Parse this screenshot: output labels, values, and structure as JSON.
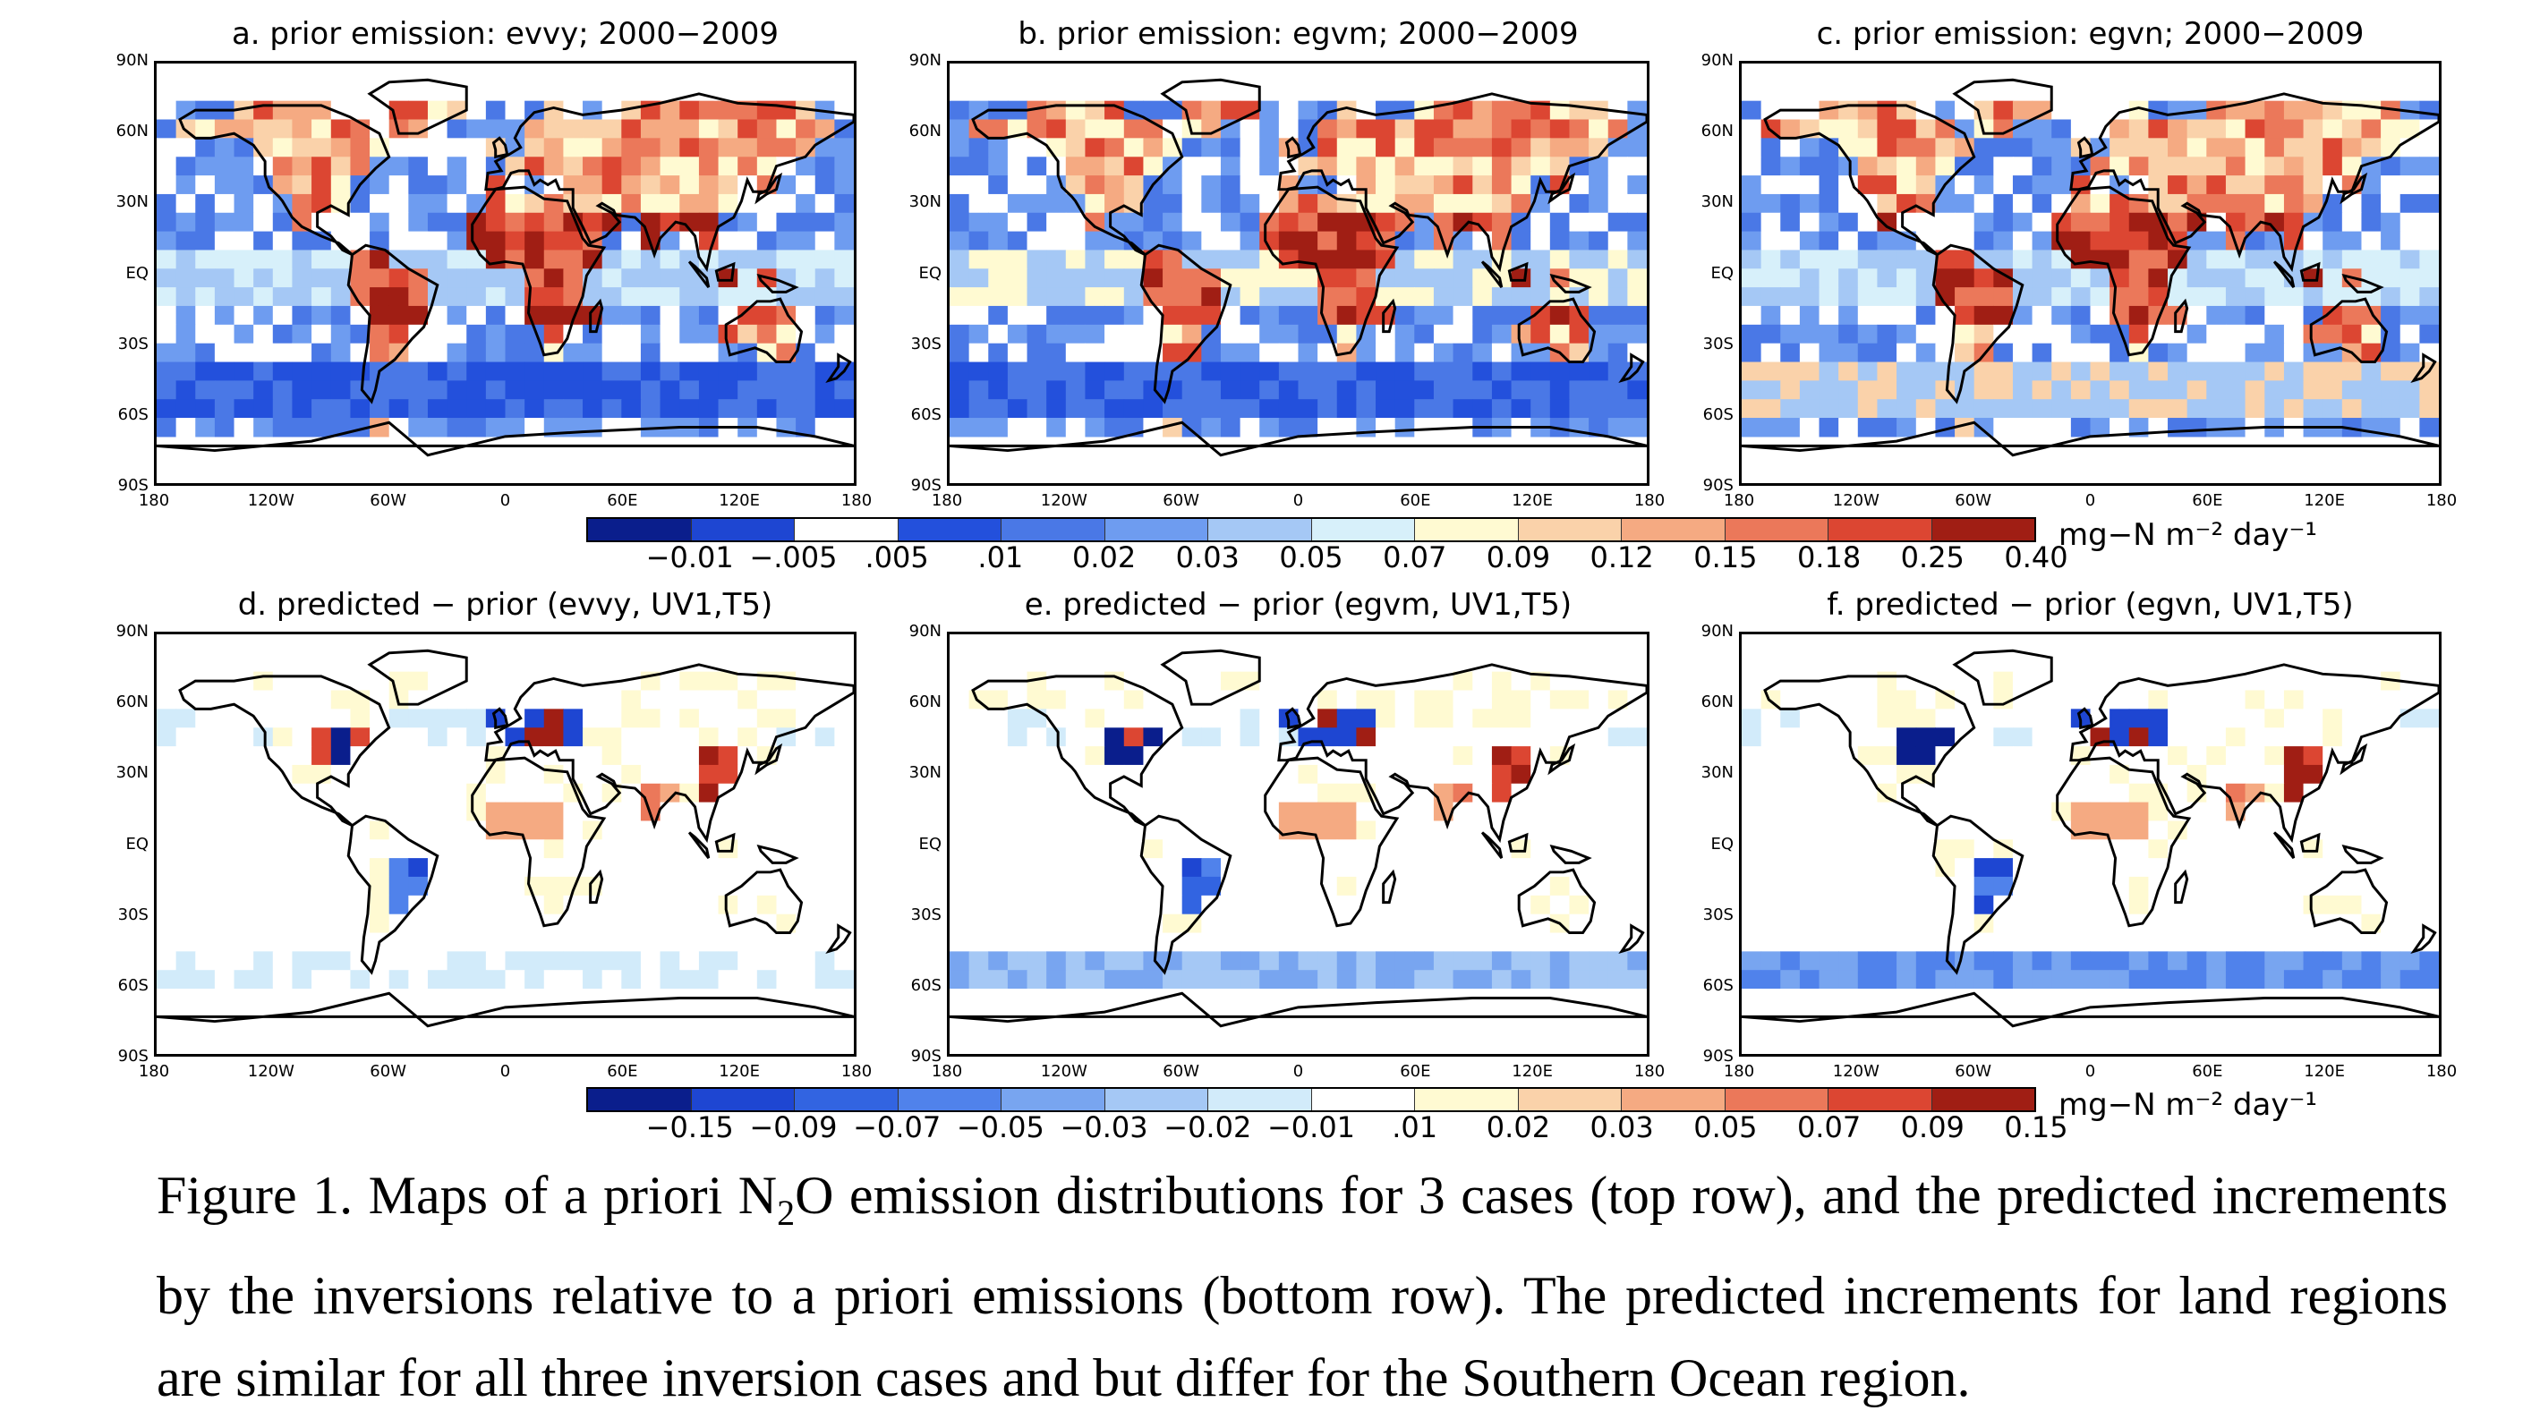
{
  "panels": [
    {
      "title": "a. prior emission: evvy; 2000−2009",
      "scheme": "prior"
    },
    {
      "title": "b. prior emission: egvm; 2000−2009",
      "scheme": "prior"
    },
    {
      "title": "c. prior emission: egvn; 2000−2009",
      "scheme": "prior"
    },
    {
      "title": "d. predicted − prior (evvy, UV1,T5)",
      "scheme": "diff"
    },
    {
      "title": "e. predicted − prior (egvm, UV1,T5)",
      "scheme": "diff"
    },
    {
      "title": "f. predicted − prior (egvn, UV1,T5)",
      "scheme": "diff"
    }
  ],
  "lat_labels": [
    "90N",
    "60N",
    "30N",
    "EQ",
    "30S",
    "60S",
    "90S"
  ],
  "lon_labels": [
    "180",
    "120W",
    "60W",
    "0",
    "60E",
    "120E",
    "180"
  ],
  "colorbar_top": {
    "labels": [
      "−0.01",
      "−.005",
      ".005",
      ".01",
      "0.02",
      "0.03",
      "0.05",
      "0.07",
      "0.09",
      "0.12",
      "0.15",
      "0.18",
      "0.25",
      "0.40"
    ],
    "colors": [
      "#0a1e8c",
      "#1e46d2",
      "#ffffff",
      "#2350dc",
      "#4a78e6",
      "#6e9cf0",
      "#a5c8f5",
      "#d7f0fa",
      "#fffad2",
      "#fad2aa",
      "#f5aa82",
      "#eb785a",
      "#dc4632",
      "#a01e14"
    ],
    "unit": "mg−N m⁻² day⁻¹"
  },
  "colorbar_bottom": {
    "labels": [
      "−0.15",
      "−0.09",
      "−0.07",
      "−0.05",
      "−0.03",
      "−0.02",
      "−0.01",
      ".01",
      "0.02",
      "0.03",
      "0.05",
      "0.07",
      "0.09",
      "0.15"
    ],
    "colors": [
      "#0a1e8c",
      "#1e46d2",
      "#3264e1",
      "#5082eb",
      "#78a5f0",
      "#a5c8f5",
      "#d2ebfa",
      "#ffffff",
      "#fffad2",
      "#fad2aa",
      "#f5aa82",
      "#eb785a",
      "#dc4632",
      "#a01e14"
    ],
    "unit": "mg−N m⁻² day⁻¹"
  },
  "caption": {
    "part1": "Figure 1. Maps of a priori N",
    "sub": "2",
    "part2": "O emission distributions for 3 cases (top row), and the predicted increments by the inversions relative to a priori emissions (bottom row). The predicted increments for land regions are similar for all three inversion cases and but differ for the Southern Ocean region."
  }
}
